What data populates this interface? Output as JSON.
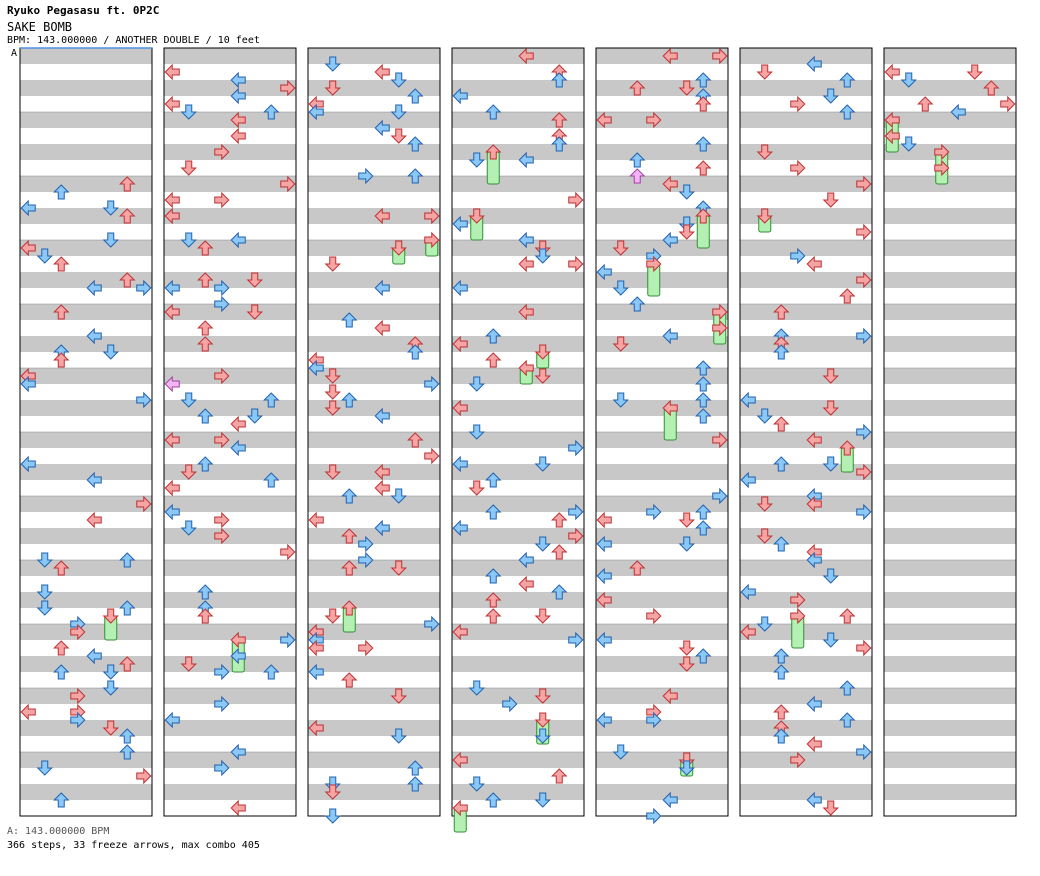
{
  "header": {
    "artist": "Ryuko Pegasasu ft. 0P2C",
    "song_title": "SAKE BOMB",
    "info_line": "BPM: 143.000000 / ANOTHER DOUBLE / 10 feet"
  },
  "bpm_marker": "A",
  "legend": "A: 143.000000 BPM",
  "stats": "366 steps, 33 freeze arrows, max combo 405",
  "colors": {
    "stripe": "#c8c8c8",
    "border": "#000000",
    "arrow_red": "#f5a5a5",
    "arrow_red_stroke": "#c03030",
    "arrow_blue": "#8cc8f5",
    "arrow_blue_stroke": "#2060b0",
    "arrow_pink": "#f5b4f5",
    "arrow_pink_stroke": "#a040a0",
    "freeze_green": "#b4f0b4",
    "freeze_green_stroke": "#309030"
  },
  "chart_data": {
    "type": "step-chart",
    "columns": 7,
    "measures_per_column": 12,
    "bpm": 143,
    "total_steps": 366,
    "freeze_arrows": 33,
    "max_combo": 405
  }
}
